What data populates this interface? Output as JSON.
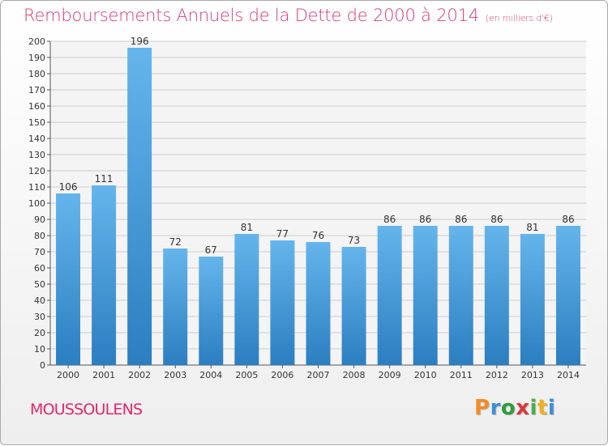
{
  "title": "Remboursements Annuels de la Dette de 2000 à 2014",
  "unit_note": "(en milliers d'€)",
  "commune": "MOUSSOULENS",
  "brand": {
    "letters": [
      "P",
      "r",
      "o",
      "x",
      "i",
      "t",
      "i"
    ],
    "colors": [
      "#f28c28",
      "#3a8fd9",
      "#2e9b3e",
      "#d9363e",
      "#4cae4c",
      "#f2b01e",
      "#3a8fd9"
    ]
  },
  "colors": {
    "bar_top": "#65b5ec",
    "bar_bottom": "#2b7ec0",
    "grid": "#cccccc",
    "plot_bg": "#f4f4f4",
    "title": "#d93a6e",
    "axis_text": "#333333"
  },
  "chart_data": {
    "type": "bar",
    "categories": [
      "2000",
      "2001",
      "2002",
      "2003",
      "2004",
      "2005",
      "2006",
      "2007",
      "2008",
      "2009",
      "2010",
      "2011",
      "2012",
      "2013",
      "2014"
    ],
    "values": [
      106,
      111,
      196,
      72,
      67,
      81,
      77,
      76,
      73,
      86,
      86,
      86,
      86,
      81,
      86
    ],
    "ylim": [
      0,
      200
    ],
    "ytick_step": 10,
    "grid": true,
    "legend": "none",
    "data_labels": true
  }
}
